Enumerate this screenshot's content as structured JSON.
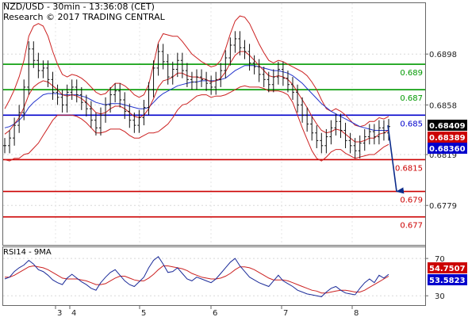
{
  "header": {
    "title": "NZD/USD - 30min - 13:36:08 (CET)",
    "source": "Research © 2017 TRADING CENTRAL"
  },
  "chart_data": [
    {
      "type": "line",
      "panel": "price",
      "y_ticks": [
        0.6898,
        0.6858,
        0.6819,
        0.6779
      ],
      "ylim": [
        0.6748,
        0.6938
      ],
      "x_ticks": [
        "3",
        "4",
        "5",
        "6",
        "7",
        "8"
      ],
      "levels": [
        {
          "value": 0.689,
          "label": "0.689",
          "color": "#009900"
        },
        {
          "value": 0.687,
          "label": "0.687",
          "color": "#009900"
        },
        {
          "value": 0.685,
          "label": "0.685",
          "color": "#0000cc"
        },
        {
          "value": 0.6815,
          "label": "0.6815",
          "color": "#cc0000"
        },
        {
          "value": 0.679,
          "label": "0.679",
          "color": "#cc0000"
        },
        {
          "value": 0.677,
          "label": "0.677",
          "color": "#cc0000"
        }
      ],
      "price_tags": [
        {
          "value": 0.6841,
          "label": "0.68409",
          "color": "#000000"
        },
        {
          "value": 0.6839,
          "label": "0.68389",
          "color": "#cc0000"
        },
        {
          "value": 0.6836,
          "label": "0.68360",
          "color": "#0000cc"
        }
      ],
      "price_series": [
        0.6826,
        0.6832,
        0.6842,
        0.6852,
        0.6872,
        0.6902,
        0.6893,
        0.6885,
        0.6887,
        0.6878,
        0.6868,
        0.6864,
        0.6858,
        0.6868,
        0.6872,
        0.6866,
        0.686,
        0.6855,
        0.6846,
        0.684,
        0.685,
        0.6858,
        0.6866,
        0.6869,
        0.6862,
        0.6853,
        0.6846,
        0.6842,
        0.6848,
        0.6856,
        0.687,
        0.6887,
        0.69,
        0.6892,
        0.688,
        0.6886,
        0.6893,
        0.6885,
        0.6878,
        0.6876,
        0.688,
        0.6878,
        0.6875,
        0.6872,
        0.6878,
        0.6885,
        0.6895,
        0.6905,
        0.691,
        0.6903,
        0.69,
        0.6891,
        0.6888,
        0.6882,
        0.6878,
        0.6874,
        0.688,
        0.6886,
        0.6879,
        0.6874,
        0.6868,
        0.6858,
        0.685,
        0.6843,
        0.6836,
        0.683,
        0.6826,
        0.6833,
        0.684,
        0.6845,
        0.6838,
        0.683,
        0.6826,
        0.6822,
        0.6828,
        0.6833,
        0.6837,
        0.6833,
        0.684,
        0.6836,
        0.6841
      ],
      "ma_red": [
        0.6835,
        0.6838,
        0.6843,
        0.6848,
        0.6856,
        0.6866,
        0.6872,
        0.6875,
        0.6877,
        0.6876,
        0.6873,
        0.687,
        0.6866,
        0.6865,
        0.6866,
        0.6865,
        0.6863,
        0.686,
        0.6856,
        0.6852,
        0.6851,
        0.6852,
        0.6855,
        0.6857,
        0.6857,
        0.6855,
        0.6852,
        0.6849,
        0.6848,
        0.685,
        0.6855,
        0.6863,
        0.6872,
        0.6877,
        0.6878,
        0.688,
        0.6883,
        0.6883,
        0.6881,
        0.688,
        0.688,
        0.6879,
        0.6878,
        0.6876,
        0.6877,
        0.6879,
        0.6884,
        0.6891,
        0.6897,
        0.69,
        0.69,
        0.6897,
        0.6893,
        0.6889,
        0.6885,
        0.6881,
        0.688,
        0.6881,
        0.688,
        0.6878,
        0.6874,
        0.6868,
        0.6862,
        0.6856,
        0.6849,
        0.6843,
        0.6838,
        0.6836,
        0.6837,
        0.6839,
        0.6838,
        0.6835,
        0.6832,
        0.6829,
        0.6829,
        0.683,
        0.6832,
        0.6832,
        0.6835,
        0.6836,
        0.6838
      ],
      "ma_blue": [
        0.684,
        0.6841,
        0.6843,
        0.6846,
        0.685,
        0.6856,
        0.686,
        0.6863,
        0.6866,
        0.6867,
        0.6867,
        0.6867,
        0.6866,
        0.6866,
        0.6866,
        0.6866,
        0.6865,
        0.6864,
        0.6862,
        0.686,
        0.6859,
        0.6858,
        0.6859,
        0.6859,
        0.6859,
        0.6858,
        0.6857,
        0.6856,
        0.6855,
        0.6855,
        0.6856,
        0.686,
        0.6864,
        0.6867,
        0.6869,
        0.6871,
        0.6873,
        0.6874,
        0.6875,
        0.6876,
        0.6876,
        0.6877,
        0.6877,
        0.6877,
        0.6877,
        0.6878,
        0.6879,
        0.6882,
        0.6885,
        0.6887,
        0.6889,
        0.6889,
        0.6889,
        0.6888,
        0.6887,
        0.6886,
        0.6885,
        0.6885,
        0.6884,
        0.6883,
        0.6881,
        0.6878,
        0.6875,
        0.6871,
        0.6867,
        0.6863,
        0.6859,
        0.6856,
        0.6853,
        0.6851,
        0.6849,
        0.6847,
        0.6845,
        0.6843,
        0.6841,
        0.684,
        0.6839,
        0.6838,
        0.6838,
        0.6838,
        0.6838
      ],
      "bb_upper": [
        0.6855,
        0.6862,
        0.687,
        0.688,
        0.6893,
        0.6912,
        0.692,
        0.6922,
        0.692,
        0.6912,
        0.69,
        0.689,
        0.6882,
        0.688,
        0.6882,
        0.6881,
        0.6879,
        0.6876,
        0.6872,
        0.6868,
        0.6866,
        0.6867,
        0.6871,
        0.6875,
        0.6875,
        0.6873,
        0.687,
        0.6866,
        0.6864,
        0.6866,
        0.6874,
        0.689,
        0.6907,
        0.6914,
        0.6913,
        0.6912,
        0.6912,
        0.6908,
        0.6903,
        0.6898,
        0.6895,
        0.6892,
        0.689,
        0.6888,
        0.6889,
        0.6893,
        0.6902,
        0.6914,
        0.6924,
        0.6928,
        0.6927,
        0.6922,
        0.6914,
        0.6906,
        0.6899,
        0.6893,
        0.6891,
        0.6893,
        0.6892,
        0.689,
        0.6888,
        0.6886,
        0.6884,
        0.6881,
        0.6876,
        0.687,
        0.6862,
        0.6855,
        0.6853,
        0.6855,
        0.6853,
        0.685,
        0.6846,
        0.6842,
        0.6841,
        0.6842,
        0.6845,
        0.6845,
        0.6848,
        0.6847,
        0.6849
      ],
      "bb_lower": [
        0.6815,
        0.6814,
        0.6816,
        0.6816,
        0.6819,
        0.682,
        0.6824,
        0.6828,
        0.6834,
        0.684,
        0.6846,
        0.685,
        0.685,
        0.685,
        0.685,
        0.6849,
        0.6847,
        0.6844,
        0.684,
        0.6836,
        0.6836,
        0.6837,
        0.6839,
        0.6839,
        0.6839,
        0.6837,
        0.6834,
        0.6832,
        0.6832,
        0.6834,
        0.6836,
        0.6836,
        0.6837,
        0.684,
        0.6843,
        0.6848,
        0.6854,
        0.6858,
        0.6859,
        0.6862,
        0.6865,
        0.6866,
        0.6866,
        0.6864,
        0.6865,
        0.6865,
        0.6866,
        0.6868,
        0.687,
        0.6872,
        0.6873,
        0.6872,
        0.6872,
        0.6872,
        0.6871,
        0.6869,
        0.6869,
        0.6869,
        0.6868,
        0.6866,
        0.686,
        0.685,
        0.684,
        0.6831,
        0.6822,
        0.6816,
        0.6814,
        0.6817,
        0.6821,
        0.6823,
        0.6823,
        0.682,
        0.6818,
        0.6816,
        0.6817,
        0.6818,
        0.6819,
        0.6819,
        0.6822,
        0.6825,
        0.6827
      ],
      "projection": {
        "from": 0.6842,
        "to": 0.679
      }
    },
    {
      "type": "line",
      "panel": "rsi",
      "title": "RSI14 - 9MA",
      "y_ticks": [
        70,
        30
      ],
      "ylim": [
        20,
        82
      ],
      "tags": [
        {
          "value": 54.7507,
          "label": "54.7507",
          "color": "#cc0000"
        },
        {
          "value": 53.5823,
          "label": "53.5823",
          "color": "#0000cc"
        }
      ],
      "rsi": [
        48,
        50,
        56,
        60,
        63,
        68,
        64,
        58,
        56,
        52,
        47,
        44,
        42,
        49,
        53,
        49,
        45,
        42,
        38,
        36,
        44,
        50,
        55,
        58,
        52,
        46,
        42,
        40,
        45,
        50,
        60,
        68,
        72,
        64,
        55,
        56,
        60,
        54,
        48,
        46,
        50,
        48,
        46,
        44,
        48,
        54,
        60,
        66,
        70,
        62,
        56,
        50,
        47,
        44,
        42,
        40,
        46,
        52,
        46,
        43,
        40,
        36,
        34,
        32,
        31,
        30,
        29,
        34,
        38,
        40,
        36,
        33,
        32,
        31,
        38,
        44,
        48,
        44,
        52,
        49,
        53
      ],
      "rsi_ma": [
        50,
        50,
        52,
        55,
        58,
        61,
        62,
        61,
        60,
        58,
        55,
        52,
        49,
        48,
        48,
        48,
        47,
        46,
        44,
        42,
        42,
        43,
        46,
        49,
        51,
        51,
        49,
        47,
        46,
        46,
        49,
        53,
        58,
        62,
        62,
        61,
        60,
        59,
        57,
        54,
        52,
        50,
        49,
        48,
        48,
        49,
        51,
        54,
        58,
        61,
        61,
        60,
        58,
        55,
        52,
        49,
        47,
        47,
        47,
        46,
        44,
        42,
        40,
        38,
        36,
        35,
        33,
        33,
        34,
        35,
        36,
        36,
        35,
        34,
        34,
        36,
        39,
        42,
        45,
        48,
        51
      ]
    }
  ]
}
